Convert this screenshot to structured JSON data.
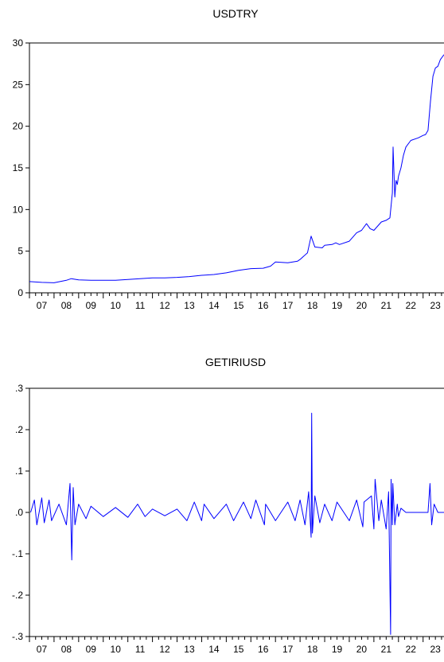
{
  "charts": [
    {
      "title": "USDTRY",
      "chart_data": {
        "type": "line",
        "title": "USDTRY",
        "xlabel": "",
        "ylabel": "",
        "x_range": [
          2007.0,
          2023.85
        ],
        "ylim": [
          0,
          30
        ],
        "y_ticks": [
          0,
          5,
          10,
          15,
          20,
          25,
          30
        ],
        "y_tick_labels": [
          "0",
          "5",
          "10",
          "15",
          "20",
          "25",
          "30"
        ],
        "x_ticks": [
          "07",
          "08",
          "09",
          "10",
          "11",
          "12",
          "13",
          "14",
          "15",
          "16",
          "17",
          "18",
          "19",
          "20",
          "21",
          "22",
          "23"
        ],
        "series": [
          {
            "color": "#0000ff",
            "x": [
              2007.0,
              2007.5,
              2008.0,
              2008.5,
              2008.7,
              2009.0,
              2009.5,
              2010.0,
              2010.5,
              2011.0,
              2011.5,
              2012.0,
              2012.5,
              2013.0,
              2013.5,
              2014.0,
              2014.5,
              2015.0,
              2015.5,
              2016.0,
              2016.5,
              2016.8,
              2017.0,
              2017.5,
              2017.9,
              2018.0,
              2018.3,
              2018.45,
              2018.6,
              2018.9,
              2019.0,
              2019.3,
              2019.45,
              2019.6,
              2020.0,
              2020.3,
              2020.5,
              2020.7,
              2020.85,
              2021.0,
              2021.3,
              2021.5,
              2021.65,
              2021.75,
              2021.78,
              2021.85,
              2021.9,
              2021.95,
              2022.0,
              2022.1,
              2022.2,
              2022.3,
              2022.5,
              2022.8,
              2023.0,
              2023.1,
              2023.2,
              2023.3,
              2023.4,
              2023.5,
              2023.6,
              2023.7,
              2023.85
            ],
            "values": [
              1.35,
              1.25,
              1.2,
              1.5,
              1.7,
              1.55,
              1.5,
              1.5,
              1.5,
              1.6,
              1.7,
              1.8,
              1.8,
              1.85,
              1.95,
              2.1,
              2.2,
              2.4,
              2.7,
              2.9,
              2.95,
              3.2,
              3.7,
              3.6,
              3.8,
              4.0,
              4.8,
              6.8,
              5.5,
              5.4,
              5.7,
              5.8,
              6.0,
              5.8,
              6.2,
              7.2,
              7.5,
              8.3,
              7.7,
              7.5,
              8.5,
              8.7,
              9.0,
              12.0,
              17.5,
              11.5,
              13.5,
              13.0,
              14.0,
              15.0,
              16.5,
              17.5,
              18.3,
              18.6,
              18.9,
              19.0,
              19.5,
              23.0,
              26.0,
              27.0,
              27.2,
              28.0,
              28.6
            ]
          }
        ]
      }
    },
    {
      "title": "GETIRIUSD",
      "chart_data": {
        "type": "line",
        "title": "GETIRIUSD",
        "xlabel": "",
        "ylabel": "",
        "x_range": [
          2007.0,
          2023.85
        ],
        "ylim": [
          -0.3,
          0.3
        ],
        "y_ticks": [
          -0.3,
          -0.2,
          -0.1,
          0.0,
          0.1,
          0.2,
          0.3
        ],
        "y_tick_labels": [
          "-.3",
          "-.2",
          "-.1",
          ".0",
          ".1",
          ".2",
          ".3"
        ],
        "x_ticks": [
          "07",
          "08",
          "09",
          "10",
          "11",
          "12",
          "13",
          "14",
          "15",
          "16",
          "17",
          "18",
          "19",
          "20",
          "21",
          "22",
          "23"
        ],
        "series": [
          {
            "color": "#0000ff",
            "x": [
              2007.05,
              2007.2,
              2007.3,
              2007.5,
              2007.6,
              2007.8,
              2007.9,
              2008.2,
              2008.5,
              2008.65,
              2008.72,
              2008.78,
              2008.85,
              2009.0,
              2009.3,
              2009.5,
              2010.0,
              2010.5,
              2011.0,
              2011.4,
              2011.7,
              2012.0,
              2012.5,
              2013.0,
              2013.4,
              2013.7,
              2014.0,
              2014.1,
              2014.5,
              2015.0,
              2015.3,
              2015.7,
              2016.0,
              2016.2,
              2016.55,
              2016.6,
              2017.0,
              2017.5,
              2017.8,
              2018.0,
              2018.2,
              2018.35,
              2018.45,
              2018.47,
              2018.5,
              2018.6,
              2018.8,
              2019.0,
              2019.3,
              2019.5,
              2020.0,
              2020.3,
              2020.55,
              2020.6,
              2020.9,
              2021.0,
              2021.05,
              2021.2,
              2021.3,
              2021.5,
              2021.6,
              2021.68,
              2021.7,
              2021.75,
              2021.77,
              2021.85,
              2021.95,
              2022.0,
              2022.1,
              2022.3,
              2022.5,
              2022.8,
              2023.0,
              2023.2,
              2023.28,
              2023.35,
              2023.45,
              2023.6,
              2023.85
            ],
            "values": [
              0.0,
              0.03,
              -0.03,
              0.035,
              -0.025,
              0.03,
              -0.02,
              0.02,
              -0.03,
              0.07,
              -0.115,
              0.06,
              -0.03,
              0.02,
              -0.015,
              0.015,
              -0.01,
              0.012,
              -0.012,
              0.02,
              -0.01,
              0.008,
              -0.008,
              0.008,
              -0.02,
              0.025,
              -0.02,
              0.02,
              -0.015,
              0.02,
              -0.02,
              0.025,
              -0.015,
              0.03,
              -0.03,
              0.02,
              -0.02,
              0.025,
              -0.02,
              0.03,
              -0.03,
              0.05,
              -0.06,
              0.24,
              -0.05,
              0.04,
              -0.025,
              0.02,
              -0.02,
              0.025,
              -0.02,
              0.03,
              -0.035,
              0.025,
              0.04,
              -0.04,
              0.08,
              -0.02,
              0.03,
              -0.04,
              0.05,
              -0.295,
              0.08,
              -0.03,
              0.07,
              -0.03,
              0.02,
              -0.01,
              0.01,
              0.0,
              0.0,
              0.0,
              0.0,
              0.0,
              0.07,
              -0.03,
              0.02,
              0.0,
              0.0
            ]
          }
        ]
      }
    }
  ]
}
